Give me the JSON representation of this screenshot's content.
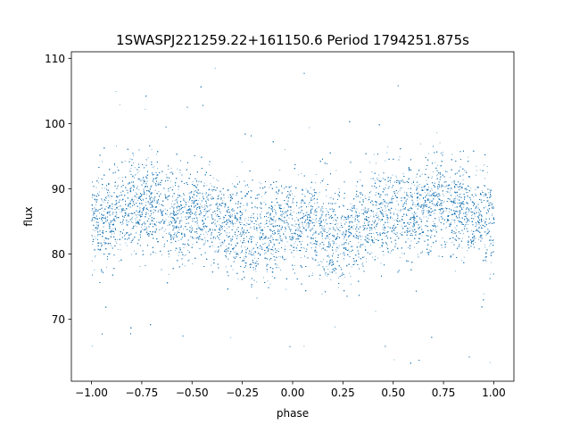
{
  "chart_data": {
    "type": "scatter",
    "title": "1SWASPJ221259.22+161150.6 Period 1794251.875s",
    "xlabel": "phase",
    "ylabel": "flux",
    "xlim": [
      -1.1,
      1.1
    ],
    "ylim": [
      60.5,
      111.0
    ],
    "xticks": [
      -1.0,
      -0.75,
      -0.5,
      -0.25,
      0.0,
      0.25,
      0.5,
      0.75,
      1.0
    ],
    "xtick_labels": [
      "−1.00",
      "−0.75",
      "−0.50",
      "−0.25",
      "0.00",
      "0.25",
      "0.50",
      "0.75",
      "1.00"
    ],
    "yticks": [
      70,
      80,
      90,
      100,
      110
    ],
    "ytick_labels": [
      "70",
      "80",
      "90",
      "100",
      "110"
    ],
    "grid": false,
    "legend": "none",
    "marker_color": "#1f77b4",
    "series": [
      {
        "x_range": [
          -1.0,
          1.0
        ],
        "mirrored_about_zero": true,
        "approx_point_count": 20000,
        "y_main_band": [
          77,
          93
        ],
        "y_outlier_range": [
          62.5,
          109
        ],
        "phase_flux_profile": {
          "phase": [
            0.0,
            0.1,
            0.2,
            0.3,
            0.4,
            0.5,
            0.6,
            0.7,
            0.8,
            0.9,
            1.0
          ],
          "median_flux": [
            85,
            84,
            82.5,
            84,
            86,
            86.5,
            86,
            88,
            87.5,
            86,
            85
          ]
        }
      }
    ]
  }
}
